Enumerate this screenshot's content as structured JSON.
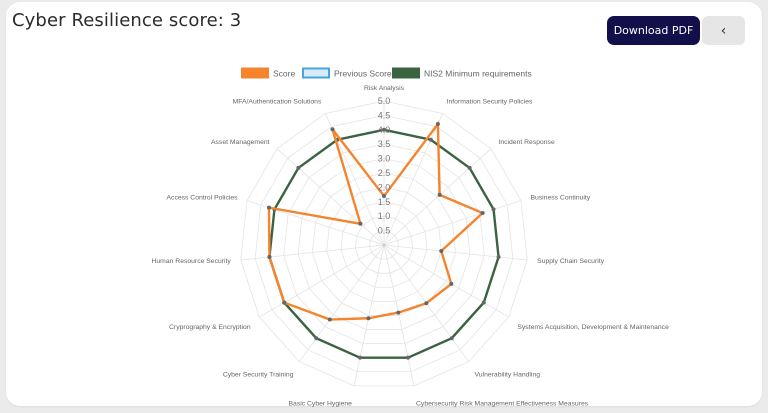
{
  "header": {
    "title": "Cyber Resilience score: 3",
    "download_label": "Download PDF",
    "back_icon": "‹"
  },
  "colors": {
    "score": "#f5842d",
    "previous": "#4aa3df",
    "nis2": "#3a6340",
    "pdf_button": "#120f4a",
    "back_button": "#e6e6e6"
  },
  "chart_data": {
    "type": "radar",
    "title": "",
    "legend": [
      {
        "name": "Score",
        "color": "#f5842d",
        "style": "filled"
      },
      {
        "name": "Previous Score",
        "color": "#4aa3df",
        "style": "outline"
      },
      {
        "name": "NIS2 Minimum requirements",
        "color": "#3a6340",
        "style": "filled"
      }
    ],
    "legend_position": "top",
    "categories": [
      "Risk Analysis",
      "Information Security Policies",
      "Incident Response",
      "Business Continuity",
      "Supply Chain Security",
      "Systems Acquisition, Development & Maintenance",
      "Vulnerability Handling",
      "Cybersecurity Risk Management Effectiveness Measures",
      "Basic Cyber Hygiene",
      "Cyber Security Training",
      "Cryprography & Encryption",
      "Human Resource Security",
      "Access Control Policies",
      "Asset Management",
      "MFA/Authentication Solutions"
    ],
    "series": [
      {
        "name": "Score",
        "values": [
          1.7,
          4.6,
          2.6,
          3.6,
          2.0,
          2.7,
          2.5,
          2.4,
          2.6,
          3.2,
          4.0,
          4.0,
          4.2,
          1.1,
          4.4
        ]
      },
      {
        "name": "Previous Score",
        "values": []
      },
      {
        "name": "NIS2 Minimum requirements",
        "values": [
          4,
          4,
          4,
          4,
          4,
          4,
          4,
          4,
          4,
          4,
          4,
          4,
          4,
          4,
          4
        ]
      }
    ],
    "r_ticks": [
      "0.5",
      "1.0",
      "1.5",
      "2.0",
      "2.5",
      "3.0",
      "3.5",
      "4.0",
      "4.5",
      "5.0"
    ],
    "r_range": [
      0,
      5
    ],
    "grid": true
  }
}
